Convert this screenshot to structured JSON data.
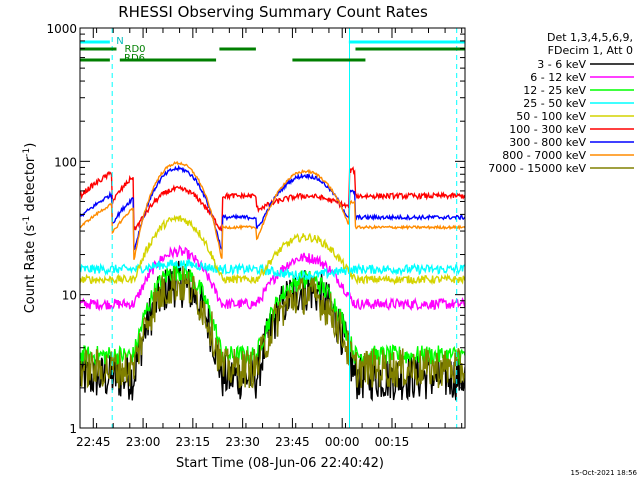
{
  "chart_data": {
    "type": "line",
    "title": "RHESSI Observing Summary Count Rates",
    "xlabel": "Start Time (08-Jun-06 22:40:42)",
    "ylabel_main": "Count Rate (s",
    "ylabel_sup1": "-1",
    "ylabel_mid": " detector",
    "ylabel_sup2": "-1",
    "ylabel_end": ")",
    "y_scale": "log",
    "ylim": [
      1,
      1000
    ],
    "xlim_minutes": [
      -19,
      97
    ],
    "xtick_labels": [
      "22:45",
      "23:00",
      "23:15",
      "23:30",
      "23:45",
      "00:00",
      "00:15"
    ],
    "xtick_minutes": [
      -15,
      0,
      15,
      30,
      45,
      60,
      75
    ],
    "ytick_labels": [
      "1",
      "10",
      "100",
      "1000"
    ],
    "ytick_values": [
      1,
      10,
      100,
      1000
    ],
    "legend_header": [
      "Det 1,3,4,5,6,9,",
      "FDecim 1, Att 0"
    ],
    "legend_placement": "right-outside",
    "footer_timestamp": "15-Oct-2021 18:56",
    "flag_labels": {
      "n": "N",
      "rd0": "RD0",
      "rd6": "RD6"
    },
    "series": [
      {
        "name": "3 - 6 keV",
        "color": "#000000",
        "base": 2.4,
        "peak1": 12,
        "peak2": 11,
        "noise": 0.35
      },
      {
        "name": "6 - 12 keV",
        "color": "#ff00ff",
        "base": 8.5,
        "peak1": 21,
        "peak2": 19,
        "noise": 0.08
      },
      {
        "name": "12 - 25 keV",
        "color": "#00ff00",
        "base": 3.5,
        "peak1": 15,
        "peak2": 13,
        "noise": 0.15
      },
      {
        "name": "25 - 50 keV",
        "color": "#00ffff",
        "base": 15.5,
        "peak1": 17,
        "peak2": 14,
        "noise": 0.07
      },
      {
        "name": "50 - 100 keV",
        "color": "#d4d400",
        "base": 13,
        "peak1": 37,
        "peak2": 27,
        "noise": 0.06
      },
      {
        "name": "100 - 300 keV",
        "color": "#ff0000",
        "base": 55,
        "peak1": 62,
        "peak2": 55,
        "noise": 0.04
      },
      {
        "name": "300 - 800 keV",
        "color": "#0000ff",
        "base": 38,
        "peak1": 88,
        "peak2": 78,
        "noise": 0.03
      },
      {
        "name": "800 - 7000 keV",
        "color": "#ff8c00",
        "base": 32,
        "peak1": 97,
        "peak2": 84,
        "noise": 0.02
      },
      {
        "name": "7000 - 15000 keV",
        "color": "#808000",
        "base": 2.8,
        "peak1": 12,
        "peak2": 10,
        "noise": 0.3
      }
    ],
    "saa_lines_minutes": [
      -19,
      -9.3,
      62.2,
      94.5
    ],
    "flags": {
      "n_segments": [
        [
          -19,
          -10
        ],
        [
          62,
          97
        ]
      ],
      "rd0_segments": [
        [
          -19,
          -8
        ],
        [
          23,
          34
        ],
        [
          64,
          97
        ]
      ],
      "rd6_segments": [
        [
          -19,
          -10
        ],
        [
          -7,
          22
        ],
        [
          45,
          67
        ]
      ]
    }
  }
}
